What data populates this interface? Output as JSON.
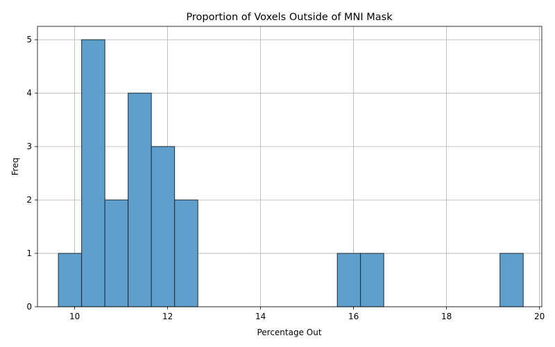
{
  "chart_data": {
    "type": "bar",
    "subtype": "histogram",
    "title": "Proportion of Voxels Outside of MNI Mask",
    "xlabel": "Percentage Out",
    "ylabel": "Freq",
    "xlim": [
      9.2,
      20.05
    ],
    "ylim": [
      0,
      5.25
    ],
    "xticks": [
      10,
      12,
      14,
      16,
      18,
      20
    ],
    "yticks": [
      0,
      1,
      2,
      3,
      4,
      5
    ],
    "grid": true,
    "bin_edges": [
      9.65,
      10.15,
      10.65,
      11.15,
      11.65,
      12.15,
      12.65,
      13.15,
      13.65,
      14.15,
      14.65,
      15.15,
      15.65,
      16.15,
      16.65,
      17.15,
      17.65,
      18.15,
      18.65,
      19.15,
      19.65
    ],
    "values": [
      1,
      5,
      2,
      4,
      3,
      2,
      0,
      0,
      0,
      0,
      0,
      0,
      1,
      1,
      0,
      0,
      0,
      0,
      0,
      1
    ],
    "colors": {
      "bar_fill": "#5f9fcc",
      "bar_edge": "#1f2a33",
      "grid": "#b0b0b0",
      "axis": "#000000"
    }
  }
}
